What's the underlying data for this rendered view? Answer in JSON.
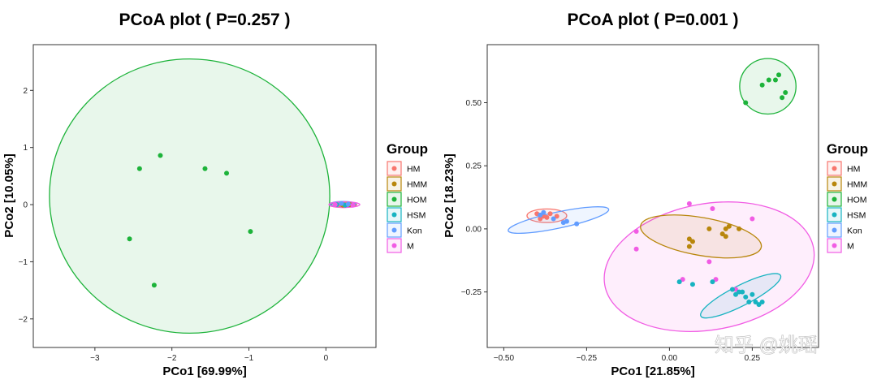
{
  "watermark": "知乎 @姚瑶",
  "colors": {
    "HM": "#F8766D",
    "HMM": "#B8860B",
    "HOM": "#1DB33A",
    "HSM": "#17B3C1",
    "Kon": "#619CFF",
    "M": "#F15CE4"
  },
  "chart_data": [
    {
      "type": "scatter",
      "title": "PCoA plot ( P=0.257 )",
      "xlabel": "PCo1 [69.99%]",
      "ylabel": "PCo2 [10.05%]",
      "xlim": [
        -3.8,
        0.65
      ],
      "ylim": [
        -2.5,
        2.8
      ],
      "xticks": [
        -3,
        -2,
        -1,
        0
      ],
      "xtick_labels": [
        "−3",
        "−2",
        "−1",
        "0"
      ],
      "yticks": [
        -2,
        -1,
        0,
        1,
        2
      ],
      "ytick_labels": [
        "−2",
        "−1",
        "0",
        "1",
        "2"
      ],
      "legend_title": "Group",
      "legend": [
        "HM",
        "HMM",
        "HOM",
        "HSM",
        "Kon",
        "M"
      ],
      "ellipses": [
        {
          "group": "HOM",
          "cx": -1.77,
          "cy": 0.15,
          "rx": 1.82,
          "ry": 2.4,
          "angle": 0
        },
        {
          "group": "HM",
          "cx": 0.22,
          "cy": 0.0,
          "rx": 0.18,
          "ry": 0.05,
          "angle": 0
        },
        {
          "group": "HMM",
          "cx": 0.23,
          "cy": 0.0,
          "rx": 0.16,
          "ry": 0.045,
          "angle": 0
        },
        {
          "group": "HSM",
          "cx": 0.21,
          "cy": 0.0,
          "rx": 0.15,
          "ry": 0.04,
          "angle": 0
        },
        {
          "group": "Kon",
          "cx": 0.22,
          "cy": 0.01,
          "rx": 0.17,
          "ry": 0.045,
          "angle": 0
        },
        {
          "group": "M",
          "cx": 0.24,
          "cy": 0.0,
          "rx": 0.2,
          "ry": 0.05,
          "angle": 0
        }
      ],
      "points": [
        {
          "group": "HOM",
          "x": -2.15,
          "y": 0.86
        },
        {
          "group": "HOM",
          "x": -2.42,
          "y": 0.63
        },
        {
          "group": "HOM",
          "x": -1.57,
          "y": 0.63
        },
        {
          "group": "HOM",
          "x": -1.29,
          "y": 0.55
        },
        {
          "group": "HOM",
          "x": -0.98,
          "y": -0.47
        },
        {
          "group": "HOM",
          "x": -2.55,
          "y": -0.6
        },
        {
          "group": "HOM",
          "x": -2.23,
          "y": -1.41
        },
        {
          "group": "HM",
          "x": 0.18,
          "y": 0.0
        },
        {
          "group": "HM",
          "x": 0.27,
          "y": 0.01
        },
        {
          "group": "HMM",
          "x": 0.22,
          "y": -0.01
        },
        {
          "group": "HMM",
          "x": 0.31,
          "y": 0.0
        },
        {
          "group": "HSM",
          "x": 0.14,
          "y": 0.0
        },
        {
          "group": "HSM",
          "x": 0.25,
          "y": -0.01
        },
        {
          "group": "Kon",
          "x": 0.2,
          "y": 0.02
        },
        {
          "group": "Kon",
          "x": 0.29,
          "y": 0.01
        },
        {
          "group": "M",
          "x": 0.35,
          "y": -0.01
        },
        {
          "group": "M",
          "x": 0.12,
          "y": 0.0
        }
      ]
    },
    {
      "type": "scatter",
      "title": "PCoA plot ( P=0.001 )",
      "xlabel": "PCo1 [21.85%]",
      "ylabel": "PCo2 [18.23%]",
      "xlim": [
        -0.55,
        0.45
      ],
      "ylim": [
        -0.47,
        0.73
      ],
      "xticks": [
        -0.5,
        -0.25,
        0,
        0.25
      ],
      "xtick_labels": [
        "−0.50",
        "−0.25",
        "0.00",
        "0.25"
      ],
      "yticks": [
        -0.25,
        0,
        0.25,
        0.5
      ],
      "ytick_labels": [
        "−0.25",
        "0.00",
        "0.25",
        "0.50"
      ],
      "legend_title": "Group",
      "legend": [
        "HM",
        "HMM",
        "HOM",
        "HSM",
        "Kon",
        "M"
      ],
      "ellipses": [
        {
          "group": "HOM",
          "cx": 0.297,
          "cy": 0.565,
          "rx": 0.085,
          "ry": 0.11,
          "angle": 0
        },
        {
          "group": "M",
          "cx": 0.12,
          "cy": -0.15,
          "rx": 0.32,
          "ry": 0.25,
          "angle": -10
        },
        {
          "group": "HMM",
          "cx": 0.095,
          "cy": -0.03,
          "rx": 0.185,
          "ry": 0.075,
          "angle": 10
        },
        {
          "group": "HSM",
          "cx": 0.215,
          "cy": -0.265,
          "rx": 0.135,
          "ry": 0.04,
          "angle": -27
        },
        {
          "group": "HM",
          "cx": -0.37,
          "cy": 0.052,
          "rx": 0.06,
          "ry": 0.027,
          "angle": 0
        },
        {
          "group": "Kon",
          "cx": -0.335,
          "cy": 0.035,
          "rx": 0.155,
          "ry": 0.032,
          "angle": -12
        }
      ],
      "points": [
        {
          "group": "HOM",
          "x": 0.33,
          "y": 0.61
        },
        {
          "group": "HOM",
          "x": 0.3,
          "y": 0.59
        },
        {
          "group": "HOM",
          "x": 0.32,
          "y": 0.59
        },
        {
          "group": "HOM",
          "x": 0.28,
          "y": 0.57
        },
        {
          "group": "HOM",
          "x": 0.35,
          "y": 0.54
        },
        {
          "group": "HOM",
          "x": 0.34,
          "y": 0.52
        },
        {
          "group": "HOM",
          "x": 0.23,
          "y": 0.5
        },
        {
          "group": "HM",
          "x": -0.4,
          "y": 0.06
        },
        {
          "group": "HM",
          "x": -0.38,
          "y": 0.05
        },
        {
          "group": "HM",
          "x": -0.36,
          "y": 0.06
        },
        {
          "group": "HM",
          "x": -0.34,
          "y": 0.05
        },
        {
          "group": "HM",
          "x": -0.39,
          "y": 0.04
        },
        {
          "group": "HM",
          "x": -0.37,
          "y": 0.045
        },
        {
          "group": "Kon",
          "x": -0.39,
          "y": 0.055
        },
        {
          "group": "Kon",
          "x": -0.35,
          "y": 0.04
        },
        {
          "group": "Kon",
          "x": -0.31,
          "y": 0.03
        },
        {
          "group": "Kon",
          "x": -0.28,
          "y": 0.02
        },
        {
          "group": "Kon",
          "x": -0.38,
          "y": 0.065
        },
        {
          "group": "Kon",
          "x": -0.32,
          "y": 0.025
        },
        {
          "group": "HMM",
          "x": 0.06,
          "y": -0.07
        },
        {
          "group": "HMM",
          "x": 0.07,
          "y": -0.05
        },
        {
          "group": "HMM",
          "x": 0.12,
          "y": 0.0
        },
        {
          "group": "HMM",
          "x": 0.16,
          "y": -0.02
        },
        {
          "group": "HMM",
          "x": 0.17,
          "y": -0.03
        },
        {
          "group": "HMM",
          "x": 0.17,
          "y": 0.0
        },
        {
          "group": "HMM",
          "x": 0.21,
          "y": 0.0
        },
        {
          "group": "HMM",
          "x": 0.06,
          "y": -0.04
        },
        {
          "group": "HMM",
          "x": 0.18,
          "y": 0.01
        },
        {
          "group": "M",
          "x": 0.13,
          "y": 0.08
        },
        {
          "group": "M",
          "x": 0.25,
          "y": 0.04
        },
        {
          "group": "M",
          "x": -0.1,
          "y": -0.01
        },
        {
          "group": "M",
          "x": -0.1,
          "y": -0.08
        },
        {
          "group": "M",
          "x": 0.12,
          "y": -0.13
        },
        {
          "group": "M",
          "x": 0.04,
          "y": -0.2
        },
        {
          "group": "M",
          "x": 0.2,
          "y": -0.24
        },
        {
          "group": "M",
          "x": 0.14,
          "y": -0.2
        },
        {
          "group": "M",
          "x": 0.06,
          "y": 0.1
        },
        {
          "group": "HSM",
          "x": 0.07,
          "y": -0.22
        },
        {
          "group": "HSM",
          "x": 0.13,
          "y": -0.21
        },
        {
          "group": "HSM",
          "x": 0.19,
          "y": -0.24
        },
        {
          "group": "HSM",
          "x": 0.21,
          "y": -0.25
        },
        {
          "group": "HSM",
          "x": 0.23,
          "y": -0.27
        },
        {
          "group": "HSM",
          "x": 0.24,
          "y": -0.29
        },
        {
          "group": "HSM",
          "x": 0.26,
          "y": -0.29
        },
        {
          "group": "HSM",
          "x": 0.27,
          "y": -0.3
        },
        {
          "group": "HSM",
          "x": 0.25,
          "y": -0.26
        },
        {
          "group": "HSM",
          "x": 0.22,
          "y": -0.25
        },
        {
          "group": "HSM",
          "x": 0.2,
          "y": -0.26
        },
        {
          "group": "HSM",
          "x": 0.28,
          "y": -0.29
        },
        {
          "group": "HSM",
          "x": 0.03,
          "y": -0.21
        }
      ]
    }
  ]
}
